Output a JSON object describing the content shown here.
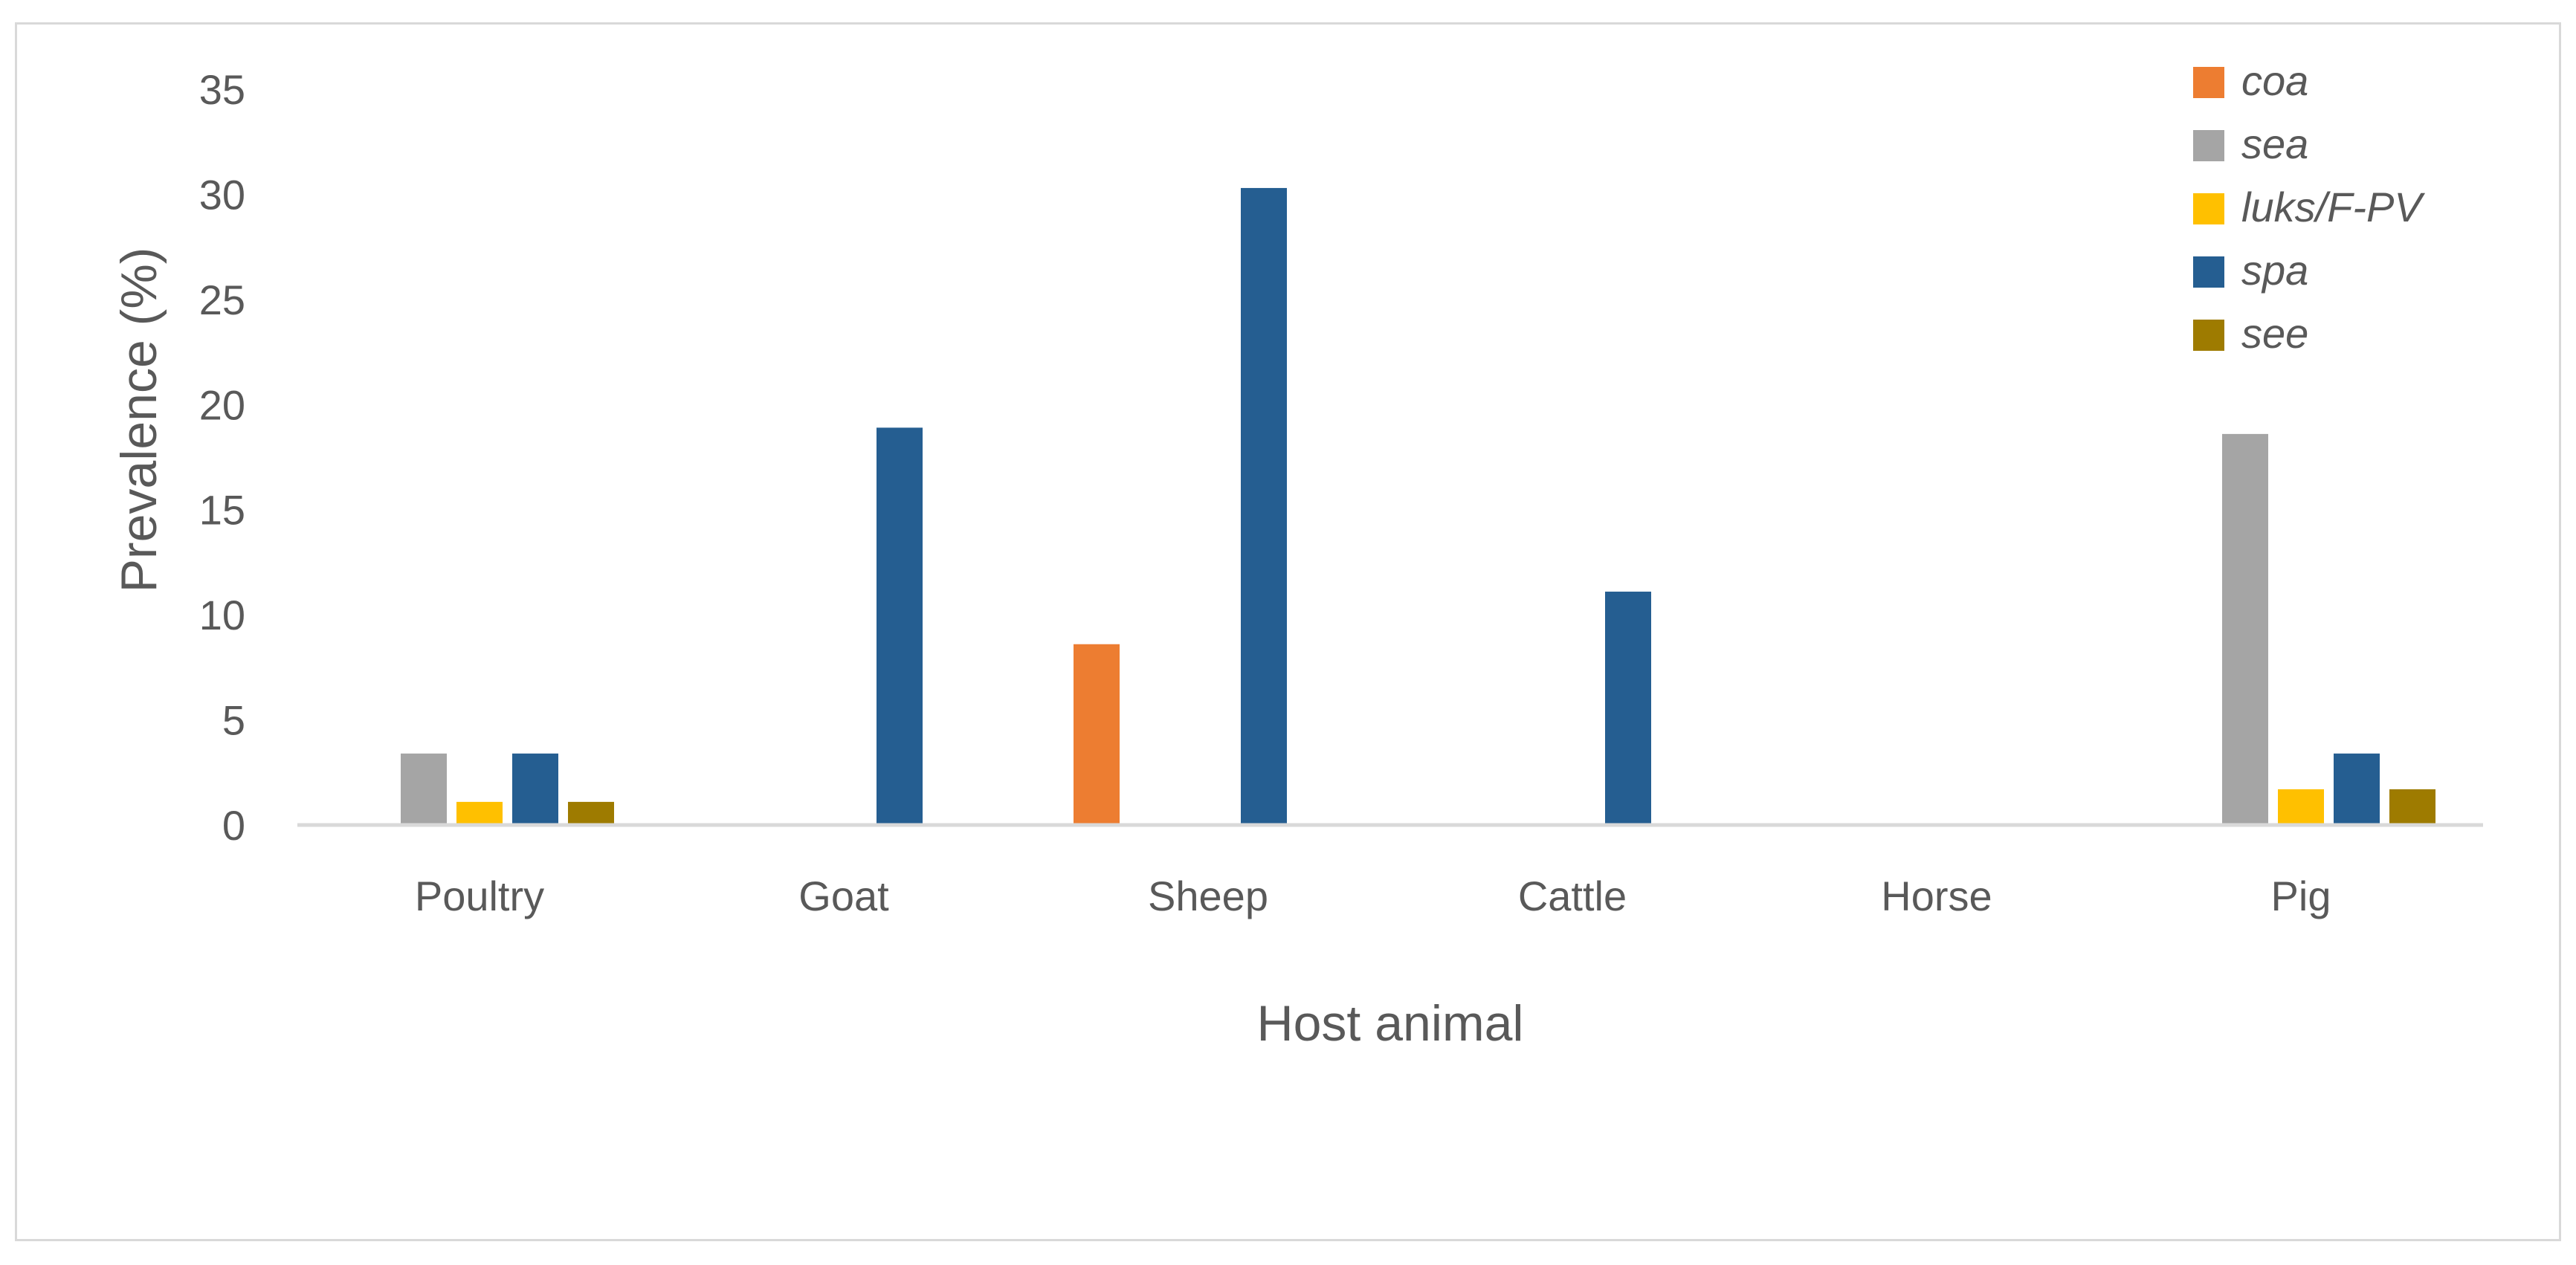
{
  "chart_data": {
    "type": "bar",
    "title": "",
    "xlabel": "Host animal",
    "ylabel": "Prevalence (%)",
    "categories": [
      "Poultry",
      "Goat",
      "Sheep",
      "Cattle",
      "Horse",
      "Pig"
    ],
    "ylim": [
      0,
      35
    ],
    "yticks": [
      0,
      5,
      10,
      15,
      20,
      25,
      30,
      35
    ],
    "grid": false,
    "legend_position": "top-right",
    "series": [
      {
        "name": "coa",
        "color": "#ED7D31",
        "values": [
          0,
          0,
          8.6,
          0,
          0,
          0
        ]
      },
      {
        "name": "sea",
        "color": "#A5A5A5",
        "values": [
          3.4,
          0,
          0,
          0,
          0,
          18.6
        ]
      },
      {
        "name": "luks/F-PV",
        "color": "#FFC000",
        "values": [
          1.1,
          0,
          0,
          0,
          0,
          1.7
        ]
      },
      {
        "name": "spa",
        "color": "#255E91",
        "values": [
          3.4,
          18.9,
          30.3,
          11.1,
          0,
          3.4
        ]
      },
      {
        "name": "see",
        "color": "#9E7B00",
        "values": [
          1.1,
          0,
          0,
          0,
          0,
          1.7
        ]
      }
    ]
  }
}
